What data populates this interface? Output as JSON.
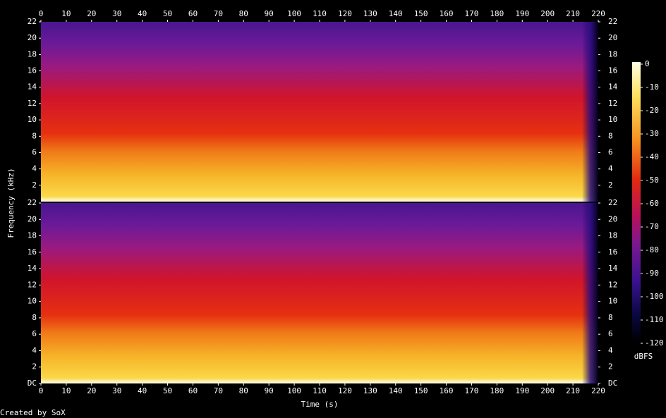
{
  "chart_data": {
    "type": "spectrogram",
    "xlabel": "Time (s)",
    "ylabel": "Frequency (kHz)",
    "footer": "Created by SoX",
    "xlim": [
      0,
      220
    ],
    "xticks": [
      0,
      10,
      20,
      30,
      40,
      50,
      60,
      70,
      80,
      90,
      100,
      110,
      120,
      130,
      140,
      150,
      160,
      170,
      180,
      190,
      200,
      210,
      220
    ],
    "channels": [
      {
        "ylim": [
          0,
          22
        ],
        "yticks": [
          2,
          4,
          6,
          8,
          10,
          12,
          14,
          16,
          18,
          20,
          22
        ]
      },
      {
        "ylim": [
          0,
          22
        ],
        "yticks": [
          {
            "value": 0,
            "label": "DC"
          },
          2,
          4,
          6,
          8,
          10,
          12,
          14,
          16,
          18,
          20,
          22
        ]
      }
    ],
    "colorbar": {
      "label": "dBFS",
      "zlim": [
        -120,
        0
      ],
      "zticks": [
        0,
        -10,
        -20,
        -30,
        -40,
        -50,
        -60,
        -70,
        -80,
        -90,
        -100,
        -110,
        -120
      ]
    }
  }
}
